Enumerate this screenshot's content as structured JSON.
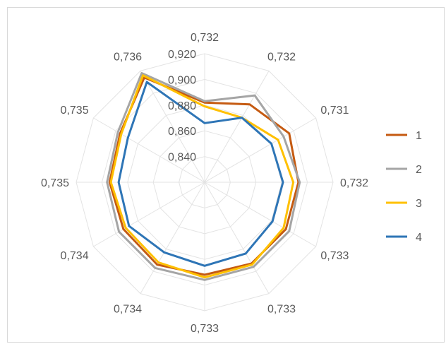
{
  "chart_data": {
    "type": "radar",
    "categories": [
      "0,732",
      "0,732",
      "0,731",
      "0,732",
      "0,733",
      "0,733",
      "0,733",
      "0,734",
      "0,734",
      "0,735",
      "0,735",
      "0,736"
    ],
    "radial_axis": {
      "min": 0.82,
      "max": 0.92,
      "ticks": [
        0.84,
        0.86,
        0.88,
        0.9,
        0.92
      ],
      "tick_labels": [
        "0,840",
        "0,860",
        "0,880",
        "0,900",
        "0,920"
      ],
      "gridlines": true
    },
    "legend_position": "right",
    "series": [
      {
        "name": "1",
        "color": "#c55a11",
        "values": [
          0.882,
          0.89,
          0.896,
          0.893,
          0.893,
          0.893,
          0.892,
          0.894,
          0.893,
          0.894,
          0.896,
          0.914
        ]
      },
      {
        "name": "2",
        "color": "#a5a5a5",
        "values": [
          0.883,
          0.898,
          0.891,
          0.894,
          0.896,
          0.896,
          0.896,
          0.897,
          0.897,
          0.896,
          0.898,
          0.918
        ]
      },
      {
        "name": "3",
        "color": "#ffc000",
        "values": [
          0.879,
          0.878,
          0.886,
          0.889,
          0.891,
          0.894,
          0.894,
          0.892,
          0.891,
          0.893,
          0.895,
          0.916
        ]
      },
      {
        "name": "4",
        "color": "#2e75b6",
        "values": [
          0.866,
          0.878,
          0.88,
          0.881,
          0.881,
          0.884,
          0.885,
          0.883,
          0.888,
          0.887,
          0.889,
          0.91
        ]
      }
    ]
  }
}
